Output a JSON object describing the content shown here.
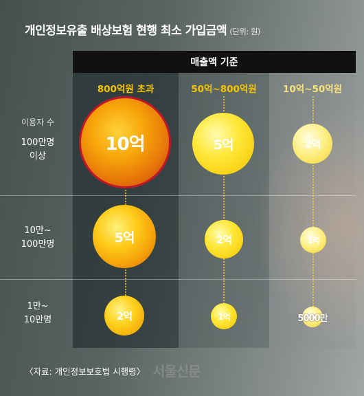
{
  "title": "개인정보유출 배상보험 현행 최소 가입금액",
  "unit": "(단위: 원)",
  "column_group_label": "매출액 기준",
  "source": "〈자료: 개인정보보호법 시행령〉",
  "logo_text": "서울신문",
  "chart_data": {
    "type": "table",
    "title": "개인정보유출 배상보험 현행 최소 가입금액",
    "unit": "(단위: 원)",
    "column_group": "매출액 기준",
    "columns": [
      "800억원 초과",
      "50억~800억원",
      "10억~50억원"
    ],
    "row_group": "이용자 수",
    "rows": [
      {
        "label": "100만명 이상",
        "line1": "100만명",
        "line2": "이상",
        "values": [
          "10억",
          "5억",
          "2억"
        ],
        "amounts": [
          1000000000,
          500000000,
          200000000
        ]
      },
      {
        "label": "10만~100만명",
        "line1": "10만~",
        "line2": "100만명",
        "values": [
          "5억",
          "2억",
          "1억"
        ],
        "amounts": [
          500000000,
          200000000,
          100000000
        ]
      },
      {
        "label": "1만~10만명",
        "line1": "1만~",
        "line2": "10만명",
        "values": [
          "2억",
          "1억",
          "5000만"
        ],
        "amounts": [
          200000000,
          100000000,
          50000000
        ]
      }
    ],
    "colors": {
      "highlight_border": "#c2162a",
      "column_header_text": "#f5c400",
      "header_bar": "#111111"
    }
  }
}
